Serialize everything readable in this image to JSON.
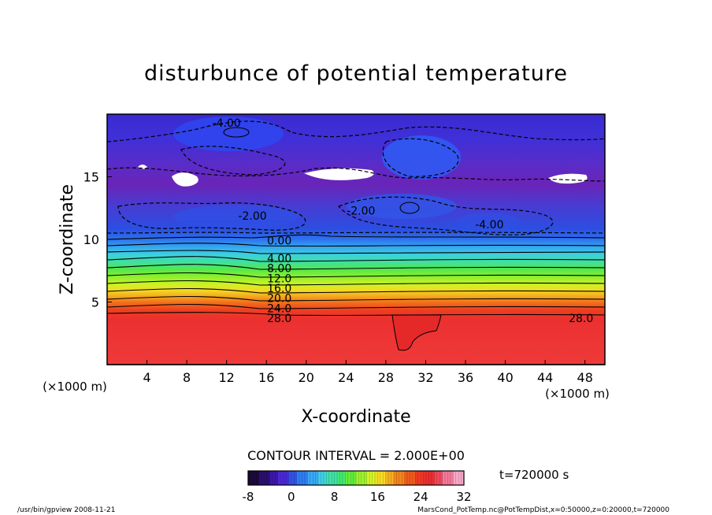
{
  "chart_data": {
    "type": "heatmap",
    "title": "disturbunce of potential temperature",
    "xlabel": "X-coordinate",
    "ylabel": "Z-coordinate",
    "x_unit": "(×1000 m)",
    "xlim": [
      0,
      50
    ],
    "ylim": [
      0,
      20
    ],
    "x_ticks": [
      4,
      8,
      12,
      16,
      20,
      24,
      28,
      32,
      36,
      40,
      44,
      48
    ],
    "y_ticks": [
      5,
      10,
      15
    ],
    "colorbar": {
      "min": -8,
      "max": 32,
      "ticks": [
        -8,
        0,
        8,
        16,
        24,
        32
      ],
      "colors": [
        "#1a0a3a",
        "#2a0f6e",
        "#3c17a8",
        "#4a28d4",
        "#3350e8",
        "#2f7cf2",
        "#37a8f4",
        "#3fd0e6",
        "#3fe0a8",
        "#43e86e",
        "#62ec3a",
        "#9cf22c",
        "#d4f428",
        "#f4dc24",
        "#f6b020",
        "#f4841c",
        "#f25a1c",
        "#ee3a22",
        "#ec2e2e",
        "#f0485a",
        "#f4789a",
        "#f6a8c8"
      ]
    },
    "contour_labels": [
      {
        "text": "-4.00",
        "x": 12.0,
        "y": 19.3
      },
      {
        "text": "-2.00",
        "x": 14.6,
        "y": 11.9
      },
      {
        "text": "-2.00",
        "x": 25.5,
        "y": 12.3
      },
      {
        "text": "-4.00",
        "x": 38.4,
        "y": 11.2
      },
      {
        "text": "0.00",
        "x": 17.3,
        "y": 9.9
      },
      {
        "text": "4.00",
        "x": 17.3,
        "y": 8.5
      },
      {
        "text": "8.00",
        "x": 17.3,
        "y": 7.7
      },
      {
        "text": "12.0",
        "x": 17.3,
        "y": 6.9
      },
      {
        "text": "16.0",
        "x": 17.3,
        "y": 6.1
      },
      {
        "text": "20.0",
        "x": 17.3,
        "y": 5.3
      },
      {
        "text": "24.0",
        "x": 17.3,
        "y": 4.5
      },
      {
        "text": "28.0",
        "x": 17.3,
        "y": 3.7
      },
      {
        "text": "28.0",
        "x": 47.6,
        "y": 3.7
      }
    ],
    "contour_interval_text": "CONTOUR INTERVAL = 2.000E+00",
    "time_text": "t=720000 s"
  },
  "footer": {
    "left": "/usr/bin/gpview  2008-11-21",
    "right": "MarsCond_PotTemp.nc@PotTempDist,x=0:50000,z=0:20000,t=720000"
  }
}
